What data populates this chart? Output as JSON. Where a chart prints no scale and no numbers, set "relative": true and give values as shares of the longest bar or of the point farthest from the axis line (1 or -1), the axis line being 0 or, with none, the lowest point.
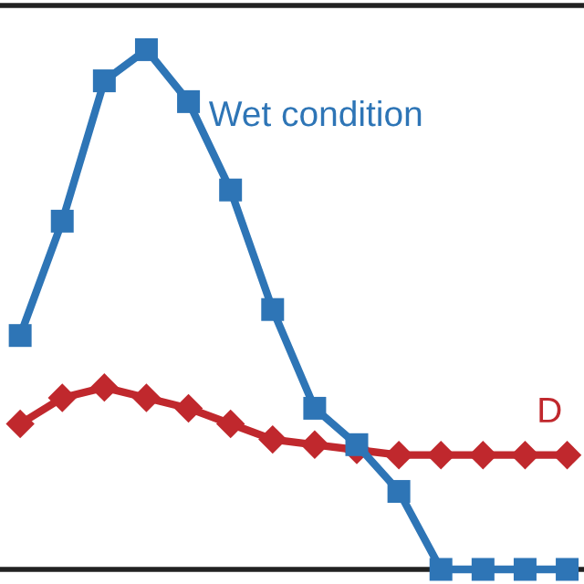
{
  "chart_data": {
    "type": "line",
    "relative": true,
    "line_style": "solid",
    "grid": false,
    "legend": false,
    "categories": [
      null,
      null,
      null,
      null,
      null,
      null,
      null,
      null,
      null,
      null,
      null,
      null,
      null,
      null
    ],
    "series": [
      {
        "name": "Wet condition",
        "color": "#2e75b6",
        "marker": "square",
        "values": [
          0.45,
          0.67,
          0.94,
          1,
          0.9,
          0.73,
          0.5,
          0.31,
          0.24,
          0.15,
          0,
          0,
          0,
          0
        ]
      },
      {
        "name": "D",
        "color": "#c0282d",
        "marker": "diamond",
        "values": [
          0.28,
          0.33,
          0.35,
          0.33,
          0.31,
          0.28,
          0.25,
          0.24,
          0.23,
          0.22,
          0.22,
          0.22,
          0.22,
          0.22
        ]
      }
    ]
  }
}
